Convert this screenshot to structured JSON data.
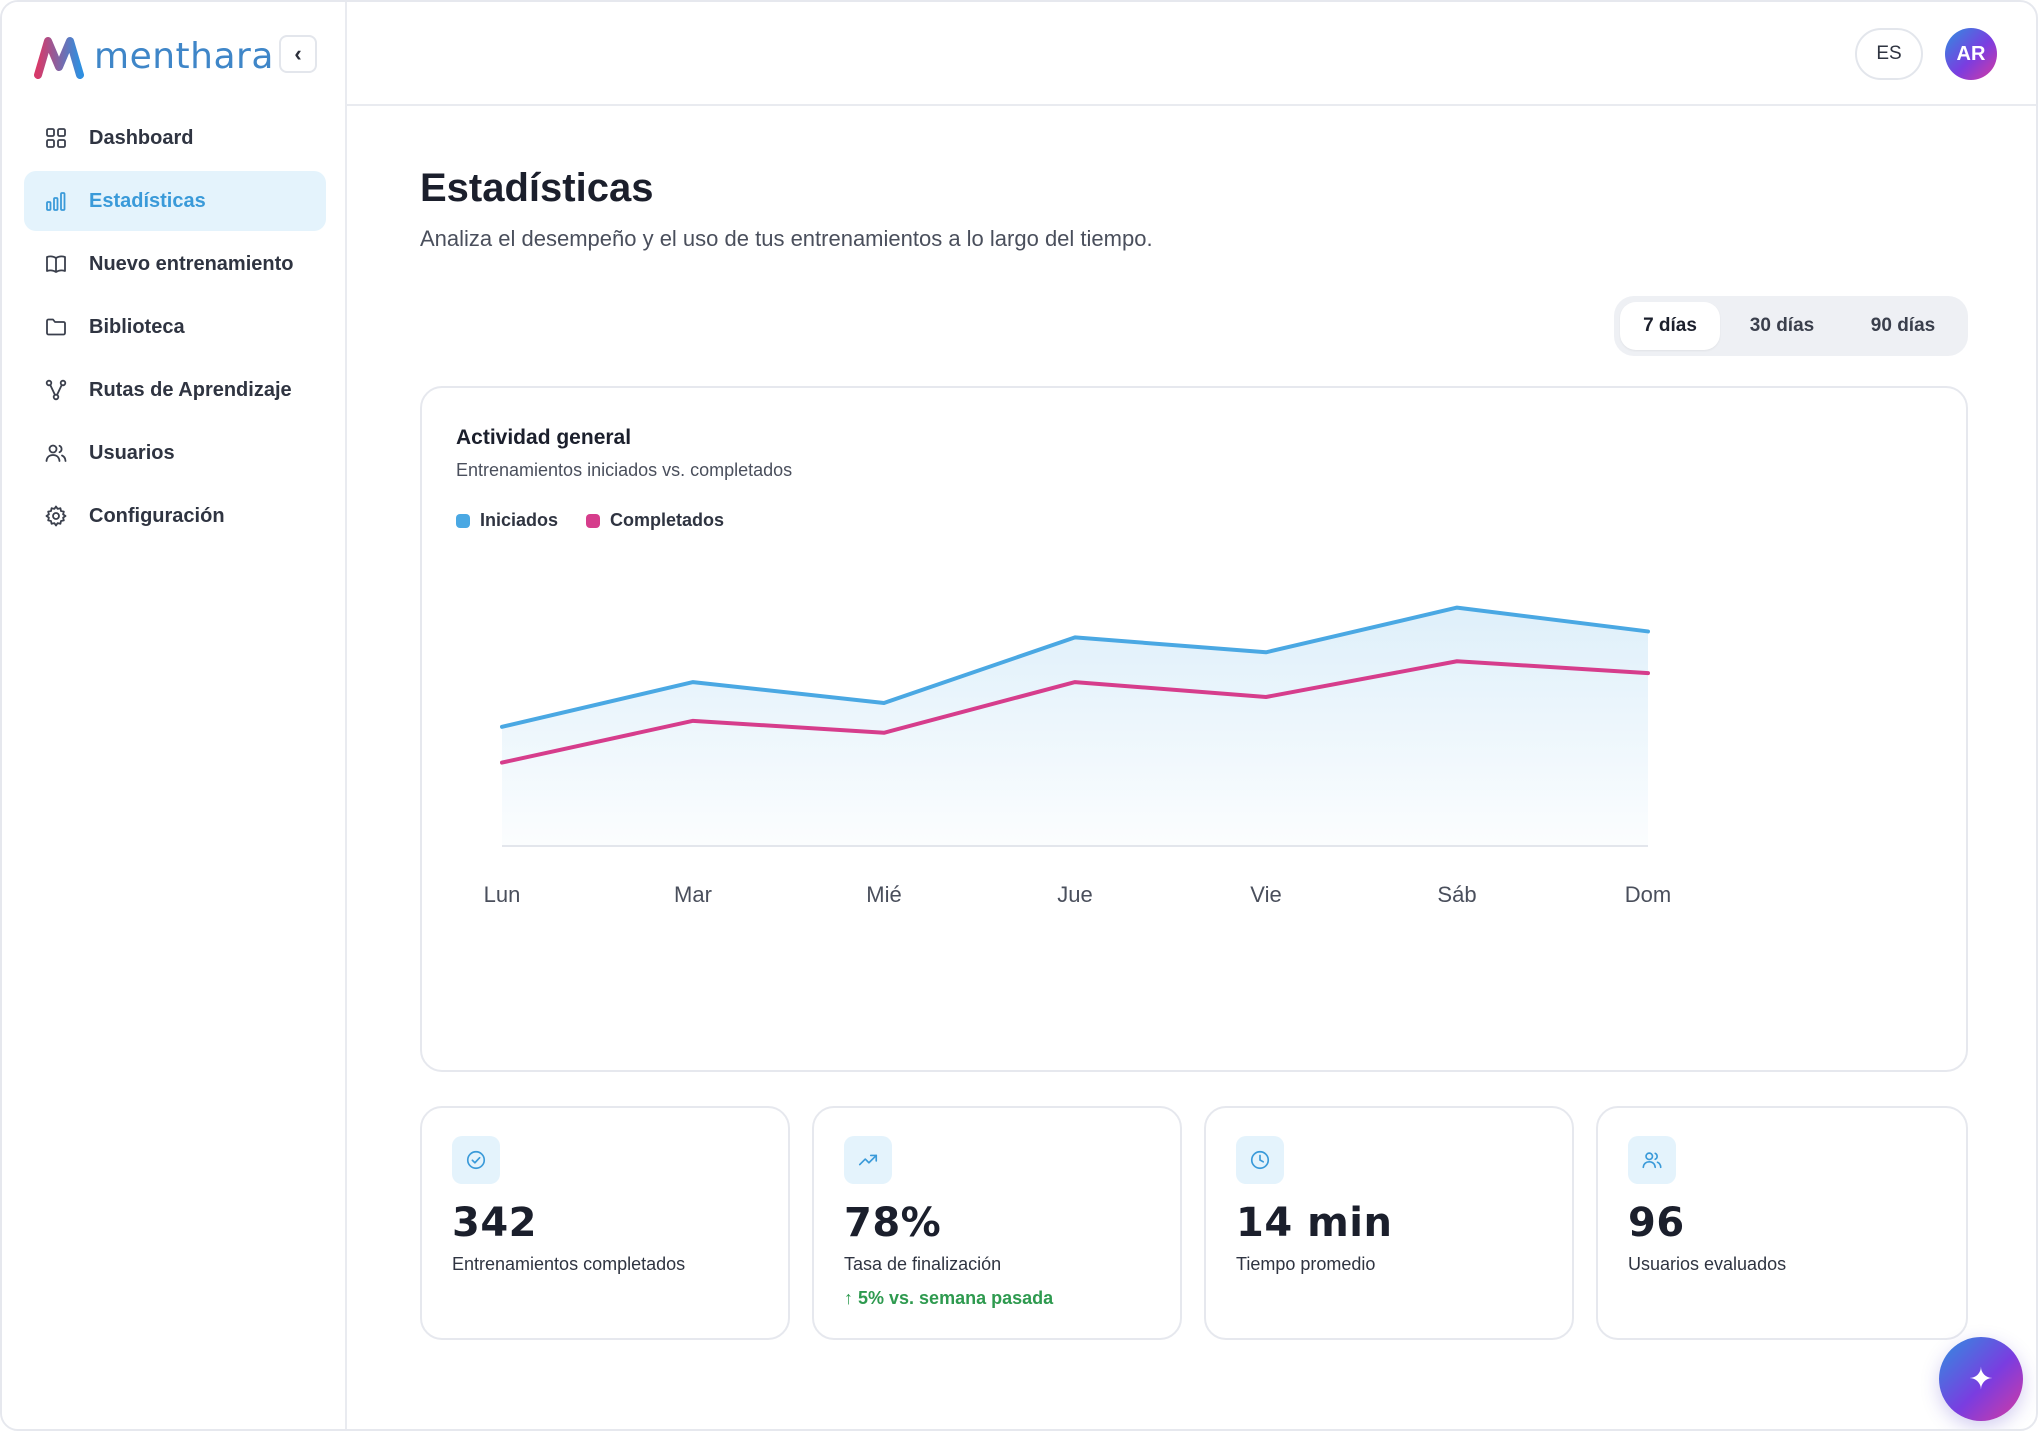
{
  "brand": {
    "name": "menthara"
  },
  "sidebar": {
    "collapse_glyph": "‹",
    "items": [
      {
        "label": "Dashboard",
        "icon": "grid-icon",
        "active": false
      },
      {
        "label": "Estadísticas",
        "icon": "bar-chart-icon",
        "active": true
      },
      {
        "label": "Nuevo entrenamiento",
        "icon": "book-open-icon",
        "active": false
      },
      {
        "label": "Biblioteca",
        "icon": "folder-icon",
        "active": false
      },
      {
        "label": "Rutas de Aprendizaje",
        "icon": "route-icon",
        "active": false
      },
      {
        "label": "Usuarios",
        "icon": "users-icon",
        "active": false
      },
      {
        "label": "Configuración",
        "icon": "gear-icon",
        "active": false
      }
    ]
  },
  "topbar": {
    "language": "ES",
    "avatar_initials": "AR"
  },
  "page": {
    "title": "Estadísticas",
    "subtitle": "Analiza el desempeño y el uso de tus entrenamientos a lo largo del tiempo."
  },
  "range": {
    "options": [
      "7 días",
      "30 días",
      "90 días"
    ],
    "selected": "7 días"
  },
  "chart_card": {
    "title": "Actividad general",
    "subtitle": "Entrenamientos iniciados vs. completados"
  },
  "chart_data": {
    "type": "line",
    "title": "Actividad general",
    "subtitle": "Entrenamientos iniciados vs. completados",
    "categories": [
      "Lun",
      "Mar",
      "Mié",
      "Jue",
      "Vie",
      "Sáb",
      "Dom"
    ],
    "ylim": [
      0,
      100
    ],
    "grid": false,
    "legend": "top-left",
    "series": [
      {
        "name": "Iniciados",
        "color": "#4aa8e3",
        "values": [
          40,
          55,
          48,
          70,
          65,
          80,
          72
        ]
      },
      {
        "name": "Completados",
        "color": "#d63d8c",
        "values": [
          28,
          42,
          38,
          55,
          50,
          62,
          58
        ]
      }
    ]
  },
  "stats": [
    {
      "icon": "check-circle-icon",
      "value": "342",
      "label": "Entrenamientos completados",
      "delta": ""
    },
    {
      "icon": "trending-up-icon",
      "value": "78%",
      "label": "Tasa de finalización",
      "delta": "↑ 5% vs. semana pasada"
    },
    {
      "icon": "clock-icon",
      "value": "14 min",
      "label": "Tiempo promedio",
      "delta": ""
    },
    {
      "icon": "users-icon",
      "value": "96",
      "label": "Usuarios evaluados",
      "delta": ""
    }
  ],
  "fab": {
    "icon": "sparkle-icon",
    "glyph": "✦"
  },
  "colors": {
    "accent": "#3a9ad9",
    "brand_blue": "#3f86c8",
    "brand_pink": "#d63a7a",
    "success": "#2e9a4f"
  }
}
